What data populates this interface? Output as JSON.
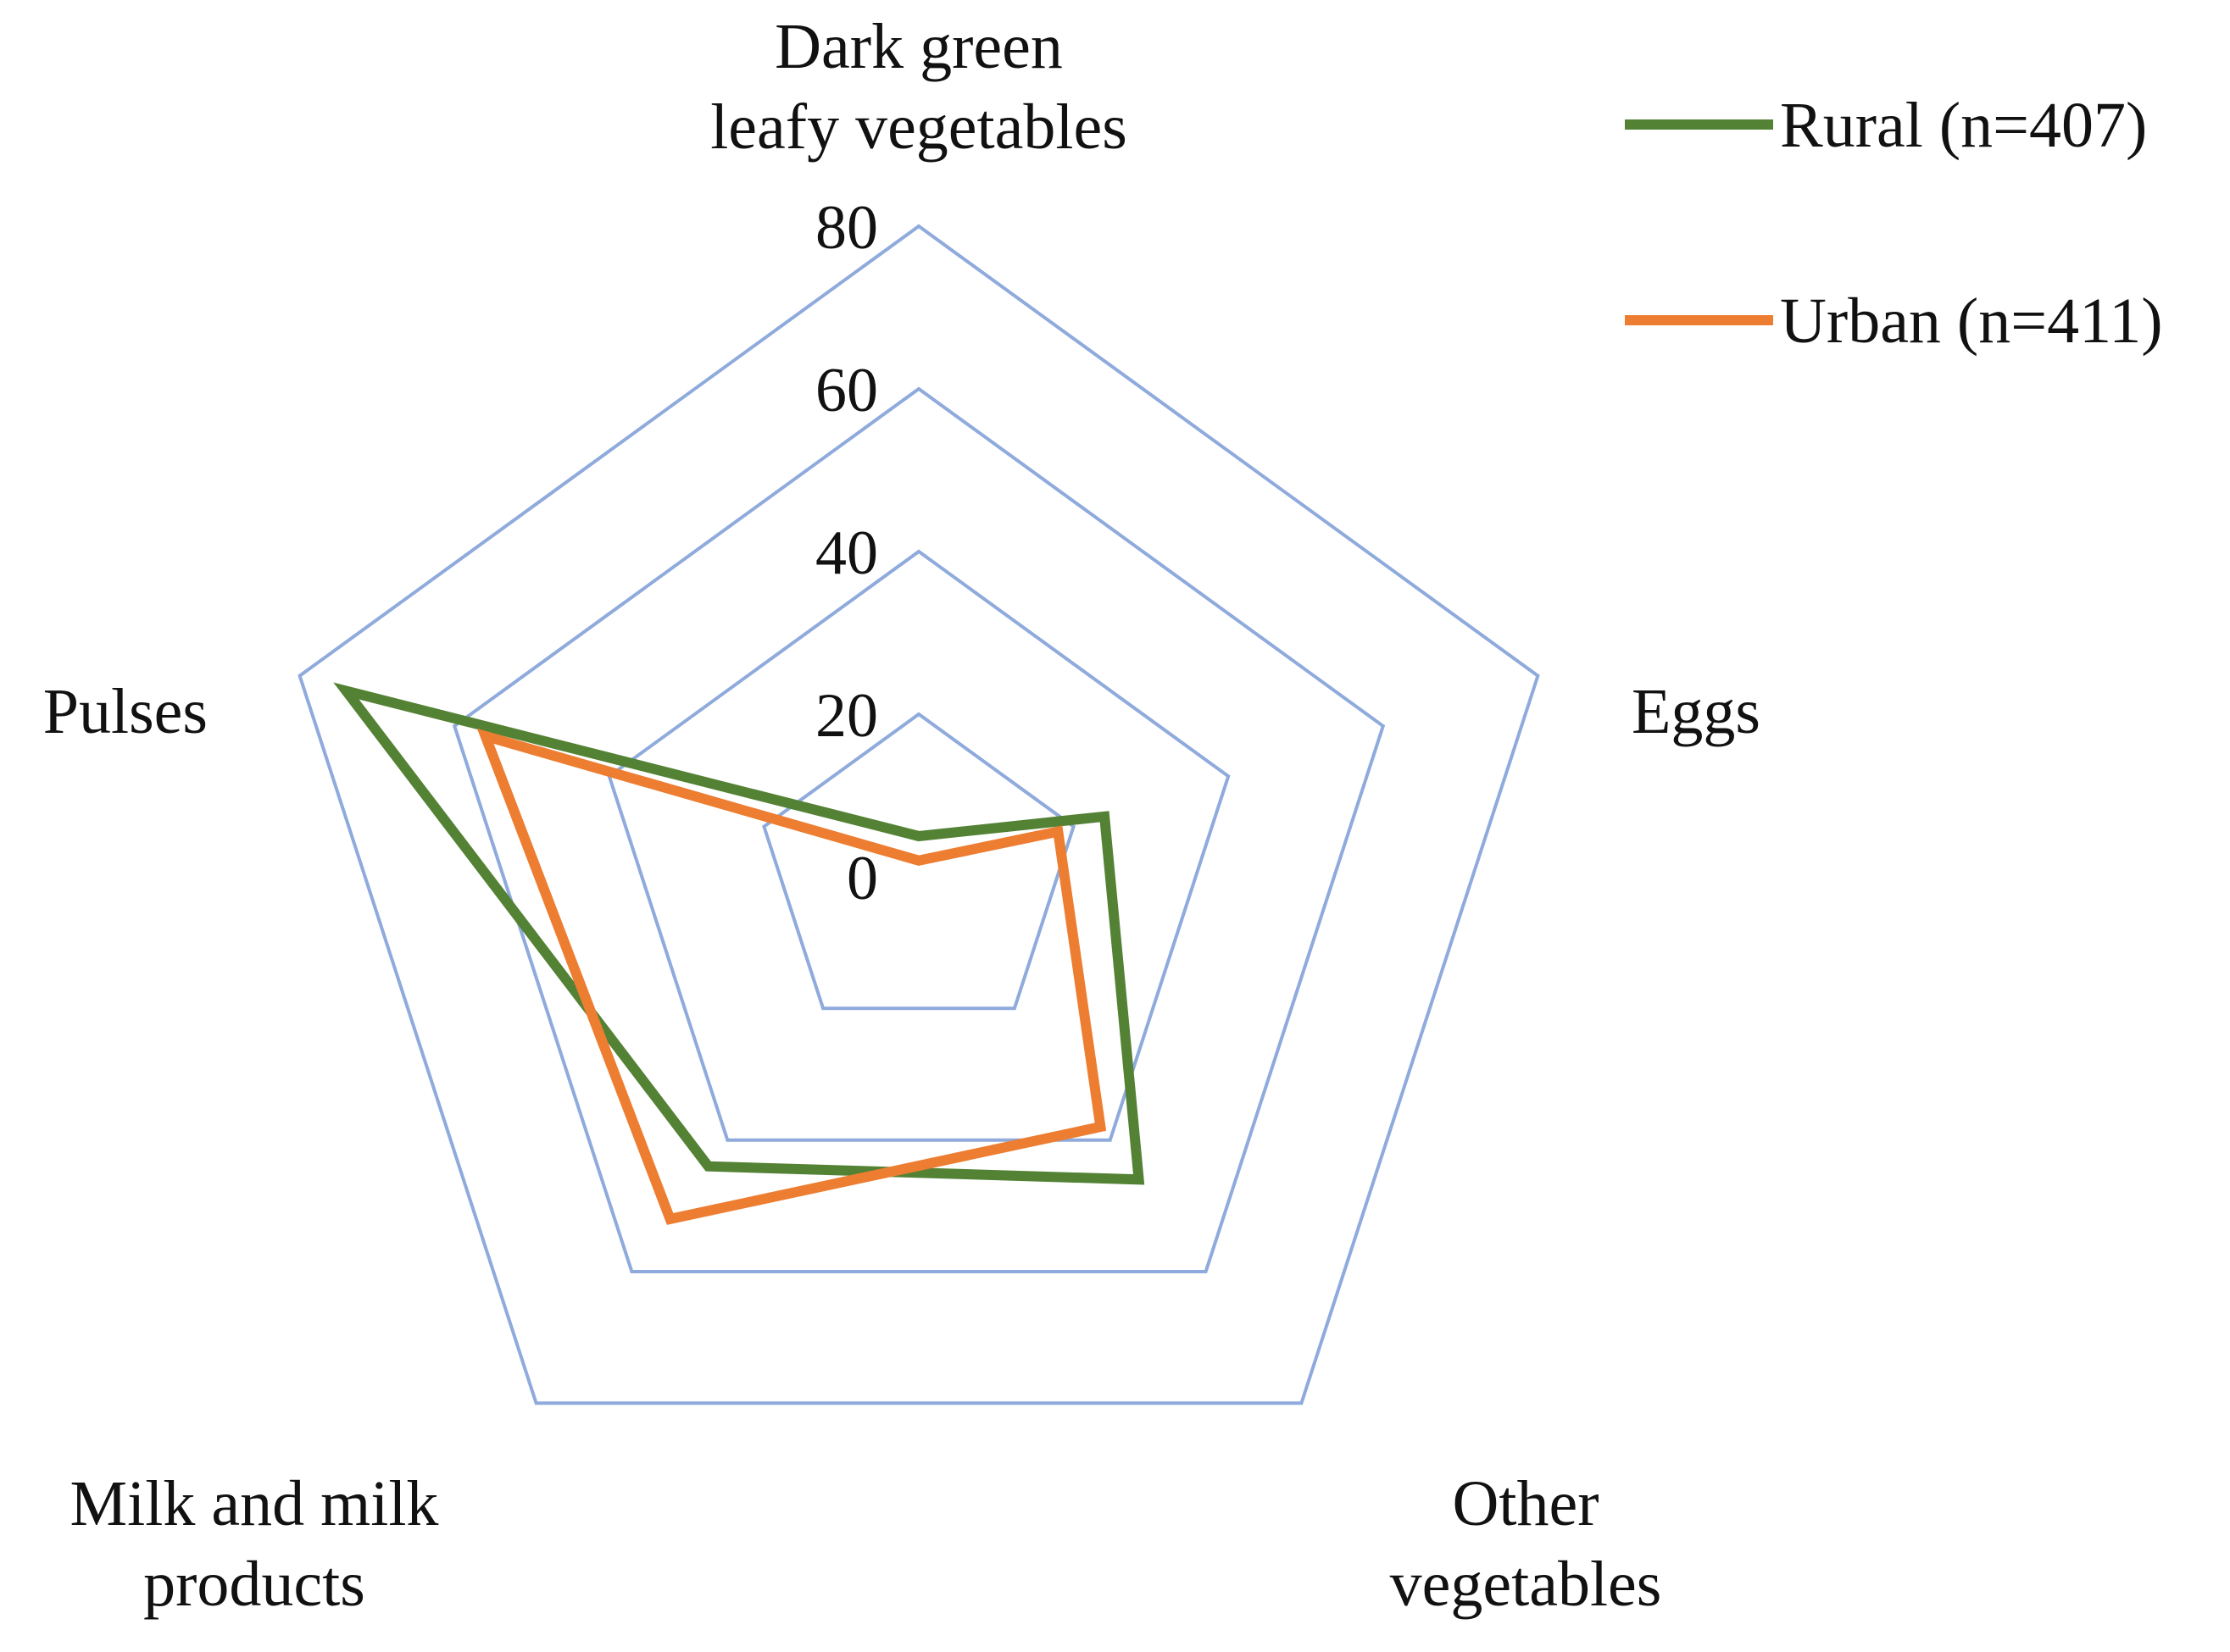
{
  "chart_data": {
    "type": "radar",
    "axes": [
      [
        "Dark green",
        "leafy vegetables"
      ],
      [
        "Eggs"
      ],
      [
        "Other",
        "vegetables"
      ],
      [
        "Milk and milk",
        "products"
      ],
      [
        "Pulses"
      ]
    ],
    "ticks": [
      "0",
      "20",
      "40",
      "60",
      "80"
    ],
    "range": [
      0,
      80
    ],
    "series": [
      {
        "name": "Rural (n=407)",
        "color": "#548235",
        "values": [
          5,
          24,
          46,
          44,
          74
        ]
      },
      {
        "name": "Urban (n=411)",
        "color": "#ED7D31",
        "values": [
          2,
          18,
          38,
          52,
          56
        ]
      }
    ],
    "grid_color": "#8FAADC",
    "legend": "top-right"
  }
}
